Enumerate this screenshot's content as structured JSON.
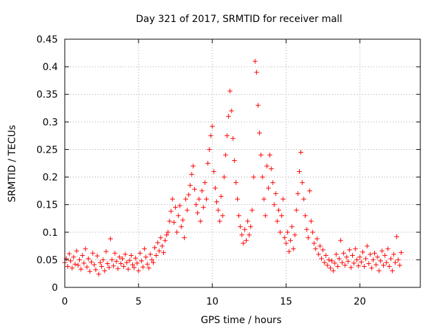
{
  "chart_data": {
    "type": "scatter",
    "title": "Day 321 of 2017, SRMTID for receiver mall",
    "xlabel": "GPS time / hours",
    "ylabel": "SRMTID / TECUs",
    "xlim": [
      0,
      24.1
    ],
    "ylim": [
      0,
      0.45
    ],
    "xticks": [
      0,
      5,
      10,
      15,
      20
    ],
    "yticks": [
      0,
      0.05,
      0.1,
      0.15,
      0.2,
      0.25,
      0.3,
      0.35,
      0.4,
      0.45
    ],
    "xtick_labels": [
      "0",
      "5",
      "10",
      "15",
      "20"
    ],
    "ytick_labels": [
      "0",
      "0.05",
      "0.1",
      "0.15",
      "0.2",
      "0.25",
      "0.3",
      "0.35",
      "0.4",
      "0.45"
    ],
    "grid": true,
    "marker": "+",
    "color": "#ff0000",
    "series": [
      {
        "name": "mall",
        "points": [
          [
            0.0,
            0.045
          ],
          [
            0.1,
            0.052
          ],
          [
            0.2,
            0.038
          ],
          [
            0.3,
            0.061
          ],
          [
            0.4,
            0.048
          ],
          [
            0.5,
            0.035
          ],
          [
            0.6,
            0.055
          ],
          [
            0.7,
            0.042
          ],
          [
            0.8,
            0.066
          ],
          [
            0.9,
            0.04
          ],
          [
            1.0,
            0.05
          ],
          [
            1.1,
            0.033
          ],
          [
            1.2,
            0.058
          ],
          [
            1.3,
            0.044
          ],
          [
            1.4,
            0.07
          ],
          [
            1.5,
            0.037
          ],
          [
            1.6,
            0.052
          ],
          [
            1.7,
            0.029
          ],
          [
            1.8,
            0.046
          ],
          [
            1.9,
            0.062
          ],
          [
            2.0,
            0.041
          ],
          [
            2.1,
            0.032
          ],
          [
            2.2,
            0.057
          ],
          [
            2.3,
            0.024
          ],
          [
            2.4,
            0.045
          ],
          [
            2.5,
            0.038
          ],
          [
            2.6,
            0.05
          ],
          [
            2.7,
            0.03
          ],
          [
            2.8,
            0.065
          ],
          [
            2.9,
            0.043
          ],
          [
            3.0,
            0.036
          ],
          [
            3.1,
            0.088
          ],
          [
            3.2,
            0.05
          ],
          [
            3.3,
            0.039
          ],
          [
            3.4,
            0.062
          ],
          [
            3.5,
            0.047
          ],
          [
            3.6,
            0.034
          ],
          [
            3.7,
            0.055
          ],
          [
            3.8,
            0.043
          ],
          [
            3.9,
            0.052
          ],
          [
            4.0,
            0.038
          ],
          [
            4.1,
            0.06
          ],
          [
            4.2,
            0.045
          ],
          [
            4.3,
            0.033
          ],
          [
            4.4,
            0.049
          ],
          [
            4.5,
            0.058
          ],
          [
            4.6,
            0.041
          ],
          [
            4.7,
            0.036
          ],
          [
            4.8,
            0.053
          ],
          [
            4.9,
            0.044
          ],
          [
            5.0,
            0.03
          ],
          [
            5.1,
            0.062
          ],
          [
            5.2,
            0.048
          ],
          [
            5.3,
            0.037
          ],
          [
            5.4,
            0.07
          ],
          [
            5.5,
            0.055
          ],
          [
            5.6,
            0.042
          ],
          [
            5.7,
            0.035
          ],
          [
            5.8,
            0.06
          ],
          [
            5.9,
            0.05
          ],
          [
            6.0,
            0.045
          ],
          [
            6.1,
            0.072
          ],
          [
            6.2,
            0.058
          ],
          [
            6.3,
            0.081
          ],
          [
            6.4,
            0.066
          ],
          [
            6.5,
            0.09
          ],
          [
            6.6,
            0.075
          ],
          [
            6.7,
            0.063
          ],
          [
            6.8,
            0.085
          ],
          [
            6.9,
            0.095
          ],
          [
            7.0,
            0.1
          ],
          [
            7.1,
            0.12
          ],
          [
            7.2,
            0.138
          ],
          [
            7.3,
            0.16
          ],
          [
            7.4,
            0.118
          ],
          [
            7.5,
            0.145
          ],
          [
            7.6,
            0.1
          ],
          [
            7.7,
            0.13
          ],
          [
            7.8,
            0.148
          ],
          [
            7.9,
            0.11
          ],
          [
            8.0,
            0.122
          ],
          [
            8.1,
            0.09
          ],
          [
            8.2,
            0.16
          ],
          [
            8.3,
            0.14
          ],
          [
            8.4,
            0.168
          ],
          [
            8.5,
            0.185
          ],
          [
            8.6,
            0.205
          ],
          [
            8.7,
            0.22
          ],
          [
            8.8,
            0.178
          ],
          [
            8.9,
            0.15
          ],
          [
            9.0,
            0.135
          ],
          [
            9.1,
            0.16
          ],
          [
            9.2,
            0.12
          ],
          [
            9.3,
            0.175
          ],
          [
            9.4,
            0.145
          ],
          [
            9.5,
            0.19
          ],
          [
            9.6,
            0.16
          ],
          [
            9.7,
            0.225
          ],
          [
            9.8,
            0.25
          ],
          [
            9.9,
            0.275
          ],
          [
            10.0,
            0.292
          ],
          [
            10.1,
            0.21
          ],
          [
            10.2,
            0.18
          ],
          [
            10.3,
            0.155
          ],
          [
            10.4,
            0.14
          ],
          [
            10.5,
            0.12
          ],
          [
            10.6,
            0.165
          ],
          [
            10.7,
            0.13
          ],
          [
            10.8,
            0.2
          ],
          [
            10.9,
            0.24
          ],
          [
            11.0,
            0.275
          ],
          [
            11.1,
            0.31
          ],
          [
            11.2,
            0.356
          ],
          [
            11.3,
            0.32
          ],
          [
            11.4,
            0.27
          ],
          [
            11.5,
            0.23
          ],
          [
            11.6,
            0.19
          ],
          [
            11.7,
            0.16
          ],
          [
            11.8,
            0.13
          ],
          [
            11.9,
            0.11
          ],
          [
            12.0,
            0.095
          ],
          [
            12.1,
            0.08
          ],
          [
            12.2,
            0.105
          ],
          [
            12.3,
            0.085
          ],
          [
            12.4,
            0.12
          ],
          [
            12.5,
            0.095
          ],
          [
            12.6,
            0.11
          ],
          [
            12.7,
            0.14
          ],
          [
            12.8,
            0.2
          ],
          [
            12.9,
            0.41
          ],
          [
            13.0,
            0.39
          ],
          [
            13.1,
            0.33
          ],
          [
            13.2,
            0.28
          ],
          [
            13.3,
            0.24
          ],
          [
            13.4,
            0.2
          ],
          [
            13.5,
            0.16
          ],
          [
            13.6,
            0.13
          ],
          [
            13.7,
            0.22
          ],
          [
            13.8,
            0.18
          ],
          [
            13.9,
            0.24
          ],
          [
            14.0,
            0.215
          ],
          [
            14.1,
            0.19
          ],
          [
            14.2,
            0.15
          ],
          [
            14.3,
            0.17
          ],
          [
            14.4,
            0.12
          ],
          [
            14.5,
            0.14
          ],
          [
            14.6,
            0.1
          ],
          [
            14.7,
            0.13
          ],
          [
            14.8,
            0.16
          ],
          [
            14.9,
            0.09
          ],
          [
            15.0,
            0.08
          ],
          [
            15.1,
            0.1
          ],
          [
            15.2,
            0.065
          ],
          [
            15.3,
            0.085
          ],
          [
            15.4,
            0.11
          ],
          [
            15.5,
            0.07
          ],
          [
            15.6,
            0.095
          ],
          [
            15.7,
            0.14
          ],
          [
            15.8,
            0.17
          ],
          [
            15.9,
            0.21
          ],
          [
            16.0,
            0.245
          ],
          [
            16.1,
            0.19
          ],
          [
            16.2,
            0.16
          ],
          [
            16.3,
            0.13
          ],
          [
            16.4,
            0.105
          ],
          [
            16.5,
            0.09
          ],
          [
            16.6,
            0.175
          ],
          [
            16.7,
            0.12
          ],
          [
            16.8,
            0.1
          ],
          [
            16.9,
            0.08
          ],
          [
            17.0,
            0.07
          ],
          [
            17.1,
            0.088
          ],
          [
            17.2,
            0.06
          ],
          [
            17.3,
            0.075
          ],
          [
            17.4,
            0.052
          ],
          [
            17.5,
            0.068
          ],
          [
            17.6,
            0.045
          ],
          [
            17.7,
            0.058
          ],
          [
            17.8,
            0.04
          ],
          [
            17.9,
            0.05
          ],
          [
            18.0,
            0.035
          ],
          [
            18.1,
            0.048
          ],
          [
            18.2,
            0.03
          ],
          [
            18.3,
            0.044
          ],
          [
            18.4,
            0.06
          ],
          [
            18.5,
            0.038
          ],
          [
            18.6,
            0.052
          ],
          [
            18.7,
            0.085
          ],
          [
            18.8,
            0.045
          ],
          [
            18.9,
            0.062
          ],
          [
            19.0,
            0.04
          ],
          [
            19.1,
            0.055
          ],
          [
            19.2,
            0.047
          ],
          [
            19.3,
            0.068
          ],
          [
            19.4,
            0.036
          ],
          [
            19.5,
            0.058
          ],
          [
            19.6,
            0.044
          ],
          [
            19.7,
            0.07
          ],
          [
            19.8,
            0.05
          ],
          [
            19.9,
            0.039
          ],
          [
            20.0,
            0.055
          ],
          [
            20.1,
            0.046
          ],
          [
            20.2,
            0.064
          ],
          [
            20.3,
            0.038
          ],
          [
            20.4,
            0.052
          ],
          [
            20.5,
            0.075
          ],
          [
            20.6,
            0.043
          ],
          [
            20.7,
            0.06
          ],
          [
            20.8,
            0.035
          ],
          [
            20.9,
            0.05
          ],
          [
            21.0,
            0.062
          ],
          [
            21.1,
            0.041
          ],
          [
            21.2,
            0.055
          ],
          [
            21.3,
            0.03
          ],
          [
            21.4,
            0.048
          ],
          [
            21.5,
            0.066
          ],
          [
            21.6,
            0.04
          ],
          [
            21.7,
            0.058
          ],
          [
            21.8,
            0.045
          ],
          [
            21.9,
            0.07
          ],
          [
            22.0,
            0.038
          ],
          [
            22.1,
            0.052
          ],
          [
            22.2,
            0.03
          ],
          [
            22.3,
            0.06
          ],
          [
            22.4,
            0.045
          ],
          [
            22.5,
            0.092
          ],
          [
            22.6,
            0.05
          ],
          [
            22.7,
            0.04
          ],
          [
            22.8,
            0.063
          ]
        ]
      }
    ]
  }
}
